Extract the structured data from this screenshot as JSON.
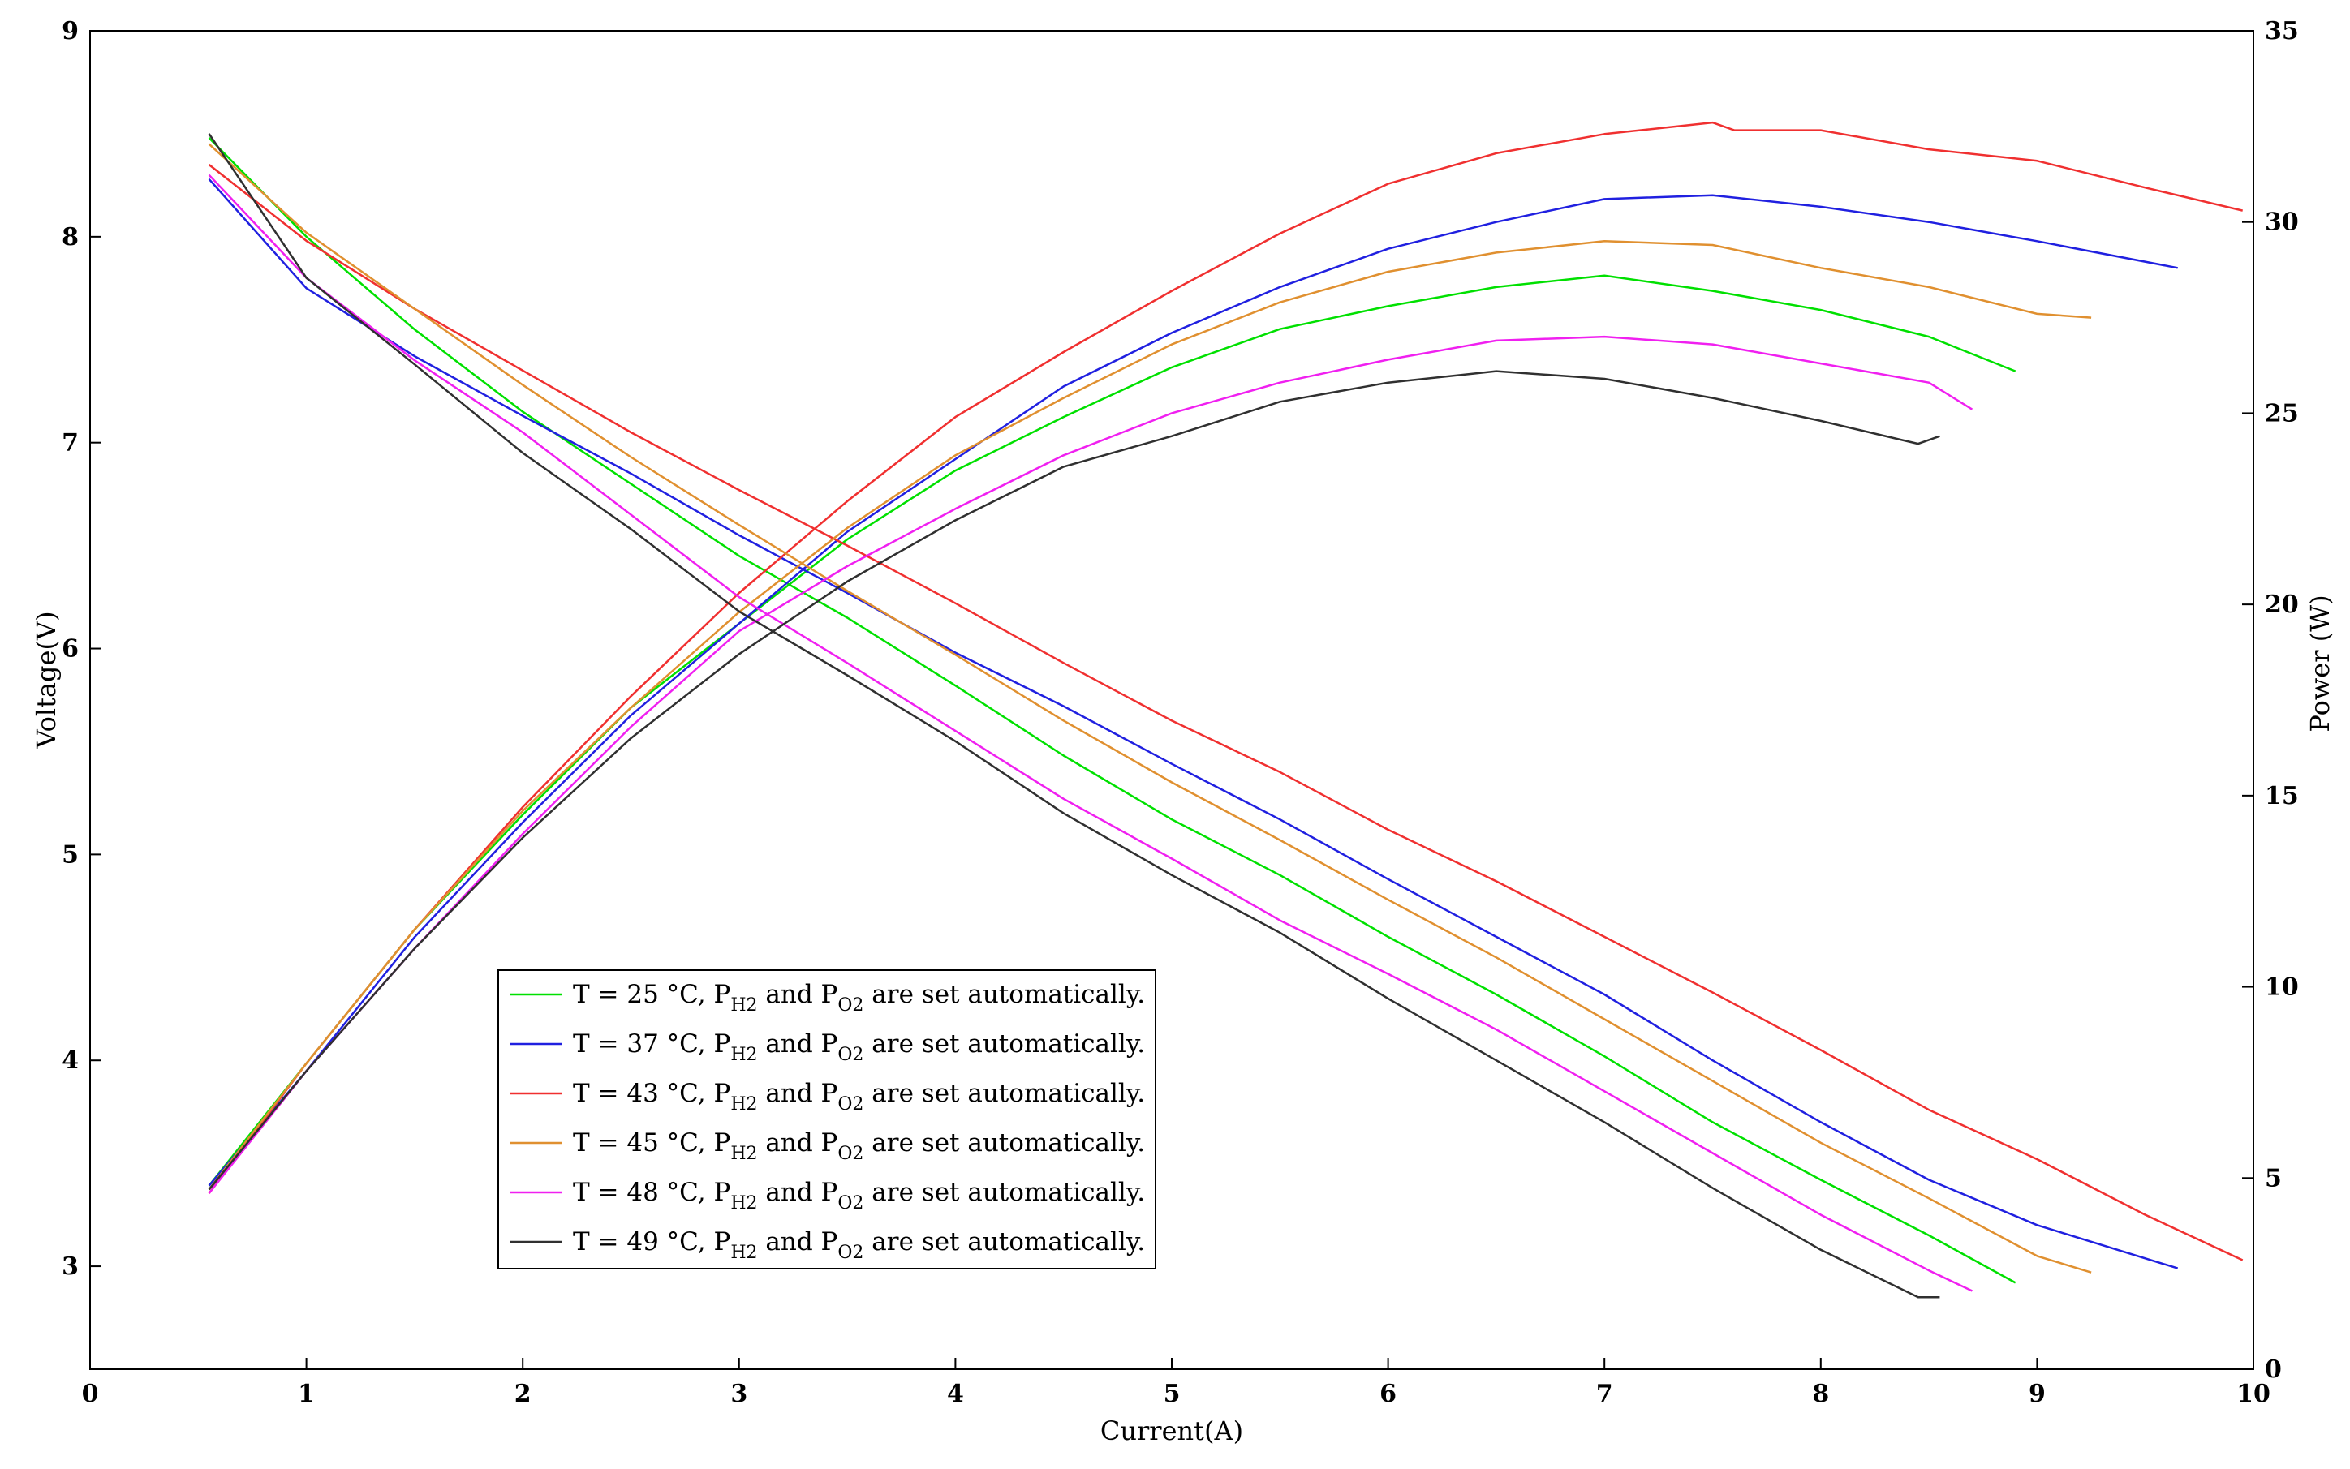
{
  "chart_data": {
    "type": "line",
    "xlabel": "Current(A)",
    "ylabel_left": "Voltage(V)",
    "ylabel_right": "Power (W)",
    "xlim": [
      0,
      10
    ],
    "ylim_left": [
      2.5,
      9
    ],
    "ylim_right": [
      0,
      35
    ],
    "xticks": [
      "0",
      "1",
      "2",
      "3",
      "4",
      "5",
      "6",
      "7",
      "8",
      "9",
      "10"
    ],
    "yticks_left": [
      "3",
      "4",
      "5",
      "6",
      "7",
      "8",
      "9"
    ],
    "yticks_right": [
      "0",
      "5",
      "10",
      "15",
      "20",
      "25",
      "30",
      "35"
    ],
    "grid": false,
    "legend_position": "lower-left",
    "series": [
      {
        "name": "T = 25 °C, PH2 and PO2 are set automatically.",
        "legend": {
          "prefix": "T = 25 °C, P",
          "sub1": "H2",
          "mid": " and P",
          "sub2": "O2",
          "suffix": " are set automatically."
        },
        "color": "#00e000",
        "voltage": {
          "x": [
            0.55,
            1,
            1.5,
            2,
            2.5,
            3,
            3.5,
            4,
            4.5,
            5,
            5.5,
            6,
            6.5,
            7,
            7.5,
            8,
            8.5,
            8.9
          ],
          "y": [
            8.48,
            8.0,
            7.55,
            7.15,
            6.8,
            6.45,
            6.15,
            5.82,
            5.48,
            5.17,
            4.9,
            4.6,
            4.32,
            4.02,
            3.7,
            3.42,
            3.15,
            2.92
          ]
        },
        "power": {
          "x": [
            0.55,
            1,
            1.5,
            2,
            2.5,
            3,
            3.5,
            4,
            4.5,
            5,
            5.5,
            6,
            6.5,
            7,
            7.5,
            8,
            8.5,
            8.9
          ],
          "y": [
            4.8,
            8.0,
            11.5,
            14.5,
            17.3,
            19.5,
            21.7,
            23.5,
            24.9,
            26.2,
            27.2,
            27.8,
            28.3,
            28.6,
            28.2,
            27.7,
            27.0,
            26.1
          ]
        }
      },
      {
        "name": "T = 37 °C, PH2 and PO2 are set automatically.",
        "legend": {
          "prefix": "T = 37 °C, P",
          "sub1": "H2",
          "mid": " and P",
          "sub2": "O2",
          "suffix": " are set automatically."
        },
        "color": "#2020e0",
        "voltage": {
          "x": [
            0.55,
            1,
            1.5,
            2,
            2.5,
            3,
            3.5,
            4,
            4.5,
            5,
            5.5,
            6,
            6.5,
            7,
            7.5,
            8,
            8.5,
            9,
            9.65
          ],
          "y": [
            8.28,
            7.75,
            7.42,
            7.13,
            6.85,
            6.55,
            6.27,
            5.98,
            5.72,
            5.44,
            5.17,
            4.88,
            4.6,
            4.32,
            4.0,
            3.7,
            3.42,
            3.2,
            2.99
          ]
        },
        "power": {
          "x": [
            0.55,
            1,
            1.5,
            2,
            2.5,
            3,
            3.5,
            4,
            4.5,
            5,
            5.5,
            6,
            6.5,
            7,
            7.5,
            8,
            8.5,
            9,
            9.65
          ],
          "y": [
            4.8,
            7.8,
            11.3,
            14.3,
            17.1,
            19.5,
            21.9,
            23.8,
            25.7,
            27.1,
            28.3,
            29.3,
            30.0,
            30.6,
            30.7,
            30.4,
            30.0,
            29.5,
            28.8
          ]
        }
      },
      {
        "name": "T = 43 °C, PH2 and PO2 are set automatically.",
        "legend": {
          "prefix": "T = 43 °C, P",
          "sub1": "H2",
          "mid": " and P",
          "sub2": "O2",
          "suffix": " are set automatically."
        },
        "color": "#f03030",
        "voltage": {
          "x": [
            0.55,
            1,
            1.5,
            2,
            2.5,
            3,
            3.5,
            4,
            4.5,
            5,
            5.5,
            6,
            6.5,
            7,
            7.5,
            8,
            8.5,
            9,
            9.5,
            9.95
          ],
          "y": [
            8.35,
            7.98,
            7.65,
            7.35,
            7.05,
            6.77,
            6.5,
            6.22,
            5.93,
            5.65,
            5.4,
            5.12,
            4.87,
            4.6,
            4.33,
            4.05,
            3.76,
            3.52,
            3.25,
            3.03
          ]
        },
        "power": {
          "x": [
            0.55,
            1,
            1.5,
            2,
            2.5,
            3,
            3.5,
            4,
            4.5,
            5,
            5.5,
            6,
            6.5,
            7,
            7.5,
            7.6,
            8,
            8.5,
            9,
            9.5,
            9.95
          ],
          "y": [
            4.6,
            8.0,
            11.5,
            14.7,
            17.6,
            20.3,
            22.7,
            24.9,
            26.6,
            28.2,
            29.7,
            31.0,
            31.8,
            32.3,
            32.6,
            32.4,
            32.4,
            31.9,
            31.6,
            30.9,
            30.3
          ]
        }
      },
      {
        "name": "T = 45 °C, PH2 and PO2 are set automatically.",
        "legend": {
          "prefix": "T = 45 °C, P",
          "sub1": "H2",
          "mid": " and P",
          "sub2": "O2",
          "suffix": " are set automatically."
        },
        "color": "#e09030",
        "voltage": {
          "x": [
            0.55,
            1,
            1.5,
            2,
            2.5,
            3,
            3.5,
            4,
            4.5,
            5,
            5.5,
            6,
            6.5,
            7,
            7.5,
            8,
            8.5,
            9,
            9.25
          ],
          "y": [
            8.45,
            8.02,
            7.65,
            7.28,
            6.93,
            6.6,
            6.28,
            5.97,
            5.65,
            5.35,
            5.07,
            4.78,
            4.5,
            4.2,
            3.9,
            3.6,
            3.33,
            3.05,
            2.97
          ]
        },
        "power": {
          "x": [
            0.55,
            1,
            1.5,
            2,
            2.5,
            3,
            3.5,
            4,
            4.5,
            5,
            5.5,
            6,
            6.5,
            7,
            7.5,
            8,
            8.5,
            9,
            9.25
          ],
          "y": [
            4.7,
            8.0,
            11.5,
            14.6,
            17.3,
            19.8,
            22.0,
            23.9,
            25.4,
            26.8,
            27.9,
            28.7,
            29.2,
            29.5,
            29.4,
            28.8,
            28.3,
            27.6,
            27.5
          ]
        }
      },
      {
        "name": "T = 48 °C, PH2 and PO2 are set automatically.",
        "legend": {
          "prefix": "T = 48 °C, P",
          "sub1": "H2",
          "mid": " and P",
          "sub2": "O2",
          "suffix": " are set automatically."
        },
        "color": "#f020f0",
        "voltage": {
          "x": [
            0.55,
            1,
            1.5,
            2,
            2.5,
            3,
            3.5,
            4,
            4.5,
            5,
            5.5,
            6,
            6.5,
            7,
            7.5,
            8,
            8.5,
            8.7
          ],
          "y": [
            8.3,
            7.8,
            7.4,
            7.05,
            6.65,
            6.25,
            5.93,
            5.6,
            5.27,
            4.98,
            4.68,
            4.42,
            4.15,
            3.85,
            3.55,
            3.25,
            2.98,
            2.88
          ]
        },
        "power": {
          "x": [
            0.55,
            1,
            1.5,
            2,
            2.5,
            3,
            3.5,
            4,
            4.5,
            5,
            5.5,
            6,
            6.5,
            7,
            7.5,
            8,
            8.5,
            8.7
          ],
          "y": [
            4.6,
            7.8,
            11.0,
            14.0,
            16.8,
            19.3,
            21.0,
            22.5,
            23.9,
            25.0,
            25.8,
            26.4,
            26.9,
            27.0,
            26.8,
            26.3,
            25.8,
            25.1
          ]
        }
      },
      {
        "name": "T = 49 °C, PH2 and PO2 are set automatically.",
        "legend": {
          "prefix": "T = 49 °C, P",
          "sub1": "H2",
          "mid": " and P",
          "sub2": "O2",
          "suffix": " are set automatically."
        },
        "color": "#303030",
        "voltage": {
          "x": [
            0.55,
            1,
            1.5,
            2,
            2.5,
            3,
            3.5,
            4,
            4.5,
            5,
            5.5,
            6,
            6.5,
            7,
            7.5,
            8,
            8.45,
            8.55
          ],
          "y": [
            8.5,
            7.8,
            7.38,
            6.95,
            6.58,
            6.18,
            5.87,
            5.55,
            5.2,
            4.9,
            4.62,
            4.3,
            4.0,
            3.7,
            3.38,
            3.08,
            2.85,
            2.85
          ]
        },
        "power": {
          "x": [
            0.55,
            1,
            1.5,
            2,
            2.5,
            3,
            3.5,
            4,
            4.5,
            5,
            5.5,
            6,
            6.5,
            7,
            7.5,
            8,
            8.45,
            8.55
          ],
          "y": [
            4.7,
            7.8,
            11.0,
            13.9,
            16.5,
            18.7,
            20.6,
            22.2,
            23.6,
            24.4,
            25.3,
            25.8,
            26.1,
            25.9,
            25.4,
            24.8,
            24.2,
            24.4
          ]
        }
      }
    ]
  }
}
